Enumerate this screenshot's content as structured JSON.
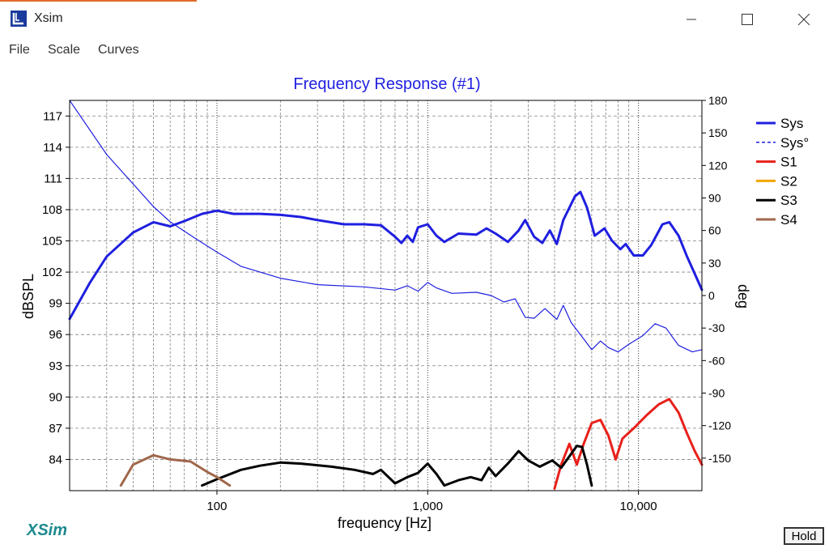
{
  "window": {
    "title": "Xsim"
  },
  "menu": {
    "items": [
      "File",
      "Scale",
      "Curves"
    ]
  },
  "hold_label": "Hold",
  "logo_text": "XSim",
  "colors": {
    "sys": "#1f1fe0",
    "s1": "#e8201a",
    "s2": "#f0a500",
    "s3": "#000000",
    "s4": "#a0674b",
    "title": "#1f1fe0",
    "grid": "#808080"
  },
  "chart_data": {
    "type": "line",
    "title": "Frequency Response (#1)",
    "xlabel": "frequency [Hz]",
    "ylabel": "dBSPL",
    "y2label": "deg",
    "xscale": "log",
    "xlim": [
      20,
      20000
    ],
    "ylim": [
      81,
      118.5
    ],
    "y2lim": [
      -180,
      180
    ],
    "x_ticks": [
      100,
      1000,
      10000
    ],
    "x_tick_labels": [
      "100",
      "1,000",
      "10,000"
    ],
    "y_ticks": [
      84,
      87,
      90,
      93,
      96,
      99,
      102,
      105,
      108,
      111,
      114,
      117
    ],
    "y2_ticks": [
      -150,
      -120,
      -90,
      -60,
      -30,
      0,
      30,
      60,
      90,
      120,
      150,
      180
    ],
    "grid": true,
    "legend_position": "right",
    "series": [
      {
        "name": "Sys",
        "axis": "left",
        "color": "#1f1fe0",
        "width": 3,
        "dash": "",
        "points": [
          [
            20,
            97.5
          ],
          [
            25,
            101
          ],
          [
            30,
            103.5
          ],
          [
            40,
            105.8
          ],
          [
            50,
            106.8
          ],
          [
            60,
            106.4
          ],
          [
            70,
            106.9
          ],
          [
            85,
            107.6
          ],
          [
            100,
            107.9
          ],
          [
            120,
            107.6
          ],
          [
            160,
            107.6
          ],
          [
            200,
            107.5
          ],
          [
            250,
            107.3
          ],
          [
            300,
            107
          ],
          [
            400,
            106.6
          ],
          [
            500,
            106.6
          ],
          [
            600,
            106.5
          ],
          [
            700,
            105.4
          ],
          [
            750,
            104.8
          ],
          [
            800,
            105.5
          ],
          [
            850,
            104.9
          ],
          [
            900,
            106.3
          ],
          [
            1000,
            106.6
          ],
          [
            1100,
            105.5
          ],
          [
            1200,
            104.9
          ],
          [
            1400,
            105.7
          ],
          [
            1700,
            105.6
          ],
          [
            1900,
            106.2
          ],
          [
            2100,
            105.7
          ],
          [
            2400,
            104.9
          ],
          [
            2700,
            106
          ],
          [
            2900,
            107
          ],
          [
            3200,
            105.4
          ],
          [
            3500,
            104.8
          ],
          [
            3800,
            106
          ],
          [
            4100,
            104.7
          ],
          [
            4400,
            107
          ],
          [
            5000,
            109.3
          ],
          [
            5300,
            109.7
          ],
          [
            5700,
            108.2
          ],
          [
            6200,
            105.5
          ],
          [
            6900,
            106.2
          ],
          [
            7500,
            105
          ],
          [
            8200,
            104.2
          ],
          [
            8700,
            104.7
          ],
          [
            9500,
            103.6
          ],
          [
            10500,
            103.6
          ],
          [
            11500,
            104.6
          ],
          [
            13000,
            106.6
          ],
          [
            14000,
            106.8
          ],
          [
            15500,
            105.5
          ],
          [
            17000,
            103.5
          ],
          [
            20000,
            100.3
          ]
        ]
      },
      {
        "name": "Sys°",
        "axis": "right",
        "color": "#1f1fe0",
        "width": 1.2,
        "dash": "",
        "points": [
          [
            20,
            180
          ],
          [
            30,
            130
          ],
          [
            50,
            82
          ],
          [
            60,
            68
          ],
          [
            80,
            52
          ],
          [
            100,
            40
          ],
          [
            130,
            27
          ],
          [
            200,
            16
          ],
          [
            300,
            10
          ],
          [
            500,
            8
          ],
          [
            700,
            5
          ],
          [
            800,
            9
          ],
          [
            900,
            4
          ],
          [
            1000,
            12
          ],
          [
            1100,
            7
          ],
          [
            1300,
            2
          ],
          [
            1700,
            3
          ],
          [
            2000,
            0
          ],
          [
            2300,
            -6
          ],
          [
            2600,
            -3
          ],
          [
            2900,
            -20
          ],
          [
            3200,
            -21
          ],
          [
            3600,
            -12
          ],
          [
            4100,
            -22
          ],
          [
            4400,
            -9
          ],
          [
            4800,
            -25
          ],
          [
            5500,
            -40
          ],
          [
            6000,
            -50
          ],
          [
            6600,
            -42
          ],
          [
            7200,
            -48
          ],
          [
            8000,
            -52
          ],
          [
            9000,
            -45
          ],
          [
            10500,
            -37
          ],
          [
            12000,
            -26
          ],
          [
            13500,
            -30
          ],
          [
            15500,
            -46
          ],
          [
            18000,
            -52
          ],
          [
            20000,
            -50
          ]
        ]
      },
      {
        "name": "S1",
        "axis": "left",
        "color": "#e8201a",
        "width": 3,
        "dash": "",
        "points": [
          [
            4000,
            81.2
          ],
          [
            4300,
            83.5
          ],
          [
            4700,
            85.5
          ],
          [
            5100,
            83.5
          ],
          [
            5500,
            85.5
          ],
          [
            6000,
            87.5
          ],
          [
            6600,
            87.8
          ],
          [
            7200,
            86.3
          ],
          [
            7800,
            84
          ],
          [
            8400,
            86
          ],
          [
            9500,
            87
          ],
          [
            11000,
            88.3
          ],
          [
            12500,
            89.3
          ],
          [
            14000,
            89.8
          ],
          [
            15500,
            88.5
          ],
          [
            17000,
            86.5
          ],
          [
            18500,
            84.8
          ],
          [
            20000,
            83.5
          ]
        ]
      },
      {
        "name": "S2",
        "axis": "left",
        "color": "#f0a500",
        "width": 3,
        "dash": "",
        "points": []
      },
      {
        "name": "S3",
        "axis": "left",
        "color": "#000000",
        "width": 3,
        "dash": "",
        "points": [
          [
            85,
            81.5
          ],
          [
            100,
            82.1
          ],
          [
            130,
            83
          ],
          [
            160,
            83.4
          ],
          [
            200,
            83.7
          ],
          [
            250,
            83.6
          ],
          [
            350,
            83.3
          ],
          [
            450,
            83
          ],
          [
            550,
            82.6
          ],
          [
            600,
            83
          ],
          [
            700,
            81.7
          ],
          [
            800,
            82.3
          ],
          [
            900,
            82.7
          ],
          [
            1000,
            83.6
          ],
          [
            1100,
            82.6
          ],
          [
            1200,
            81.5
          ],
          [
            1400,
            82
          ],
          [
            1600,
            82.3
          ],
          [
            1800,
            82
          ],
          [
            1950,
            83.2
          ],
          [
            2100,
            82.4
          ],
          [
            2400,
            83.6
          ],
          [
            2700,
            84.8
          ],
          [
            3000,
            83.9
          ],
          [
            3400,
            83.3
          ],
          [
            3900,
            83.9
          ],
          [
            4300,
            83.2
          ],
          [
            4700,
            84.3
          ],
          [
            5100,
            85.3
          ],
          [
            5400,
            85.2
          ],
          [
            5700,
            83.5
          ],
          [
            6000,
            81.5
          ]
        ]
      },
      {
        "name": "S4",
        "axis": "left",
        "color": "#a0674b",
        "width": 3,
        "dash": "",
        "points": [
          [
            35,
            81.5
          ],
          [
            40,
            83.5
          ],
          [
            50,
            84.4
          ],
          [
            60,
            84
          ],
          [
            75,
            83.8
          ],
          [
            90,
            82.8
          ],
          [
            100,
            82.3
          ],
          [
            115,
            81.5
          ]
        ]
      }
    ]
  }
}
